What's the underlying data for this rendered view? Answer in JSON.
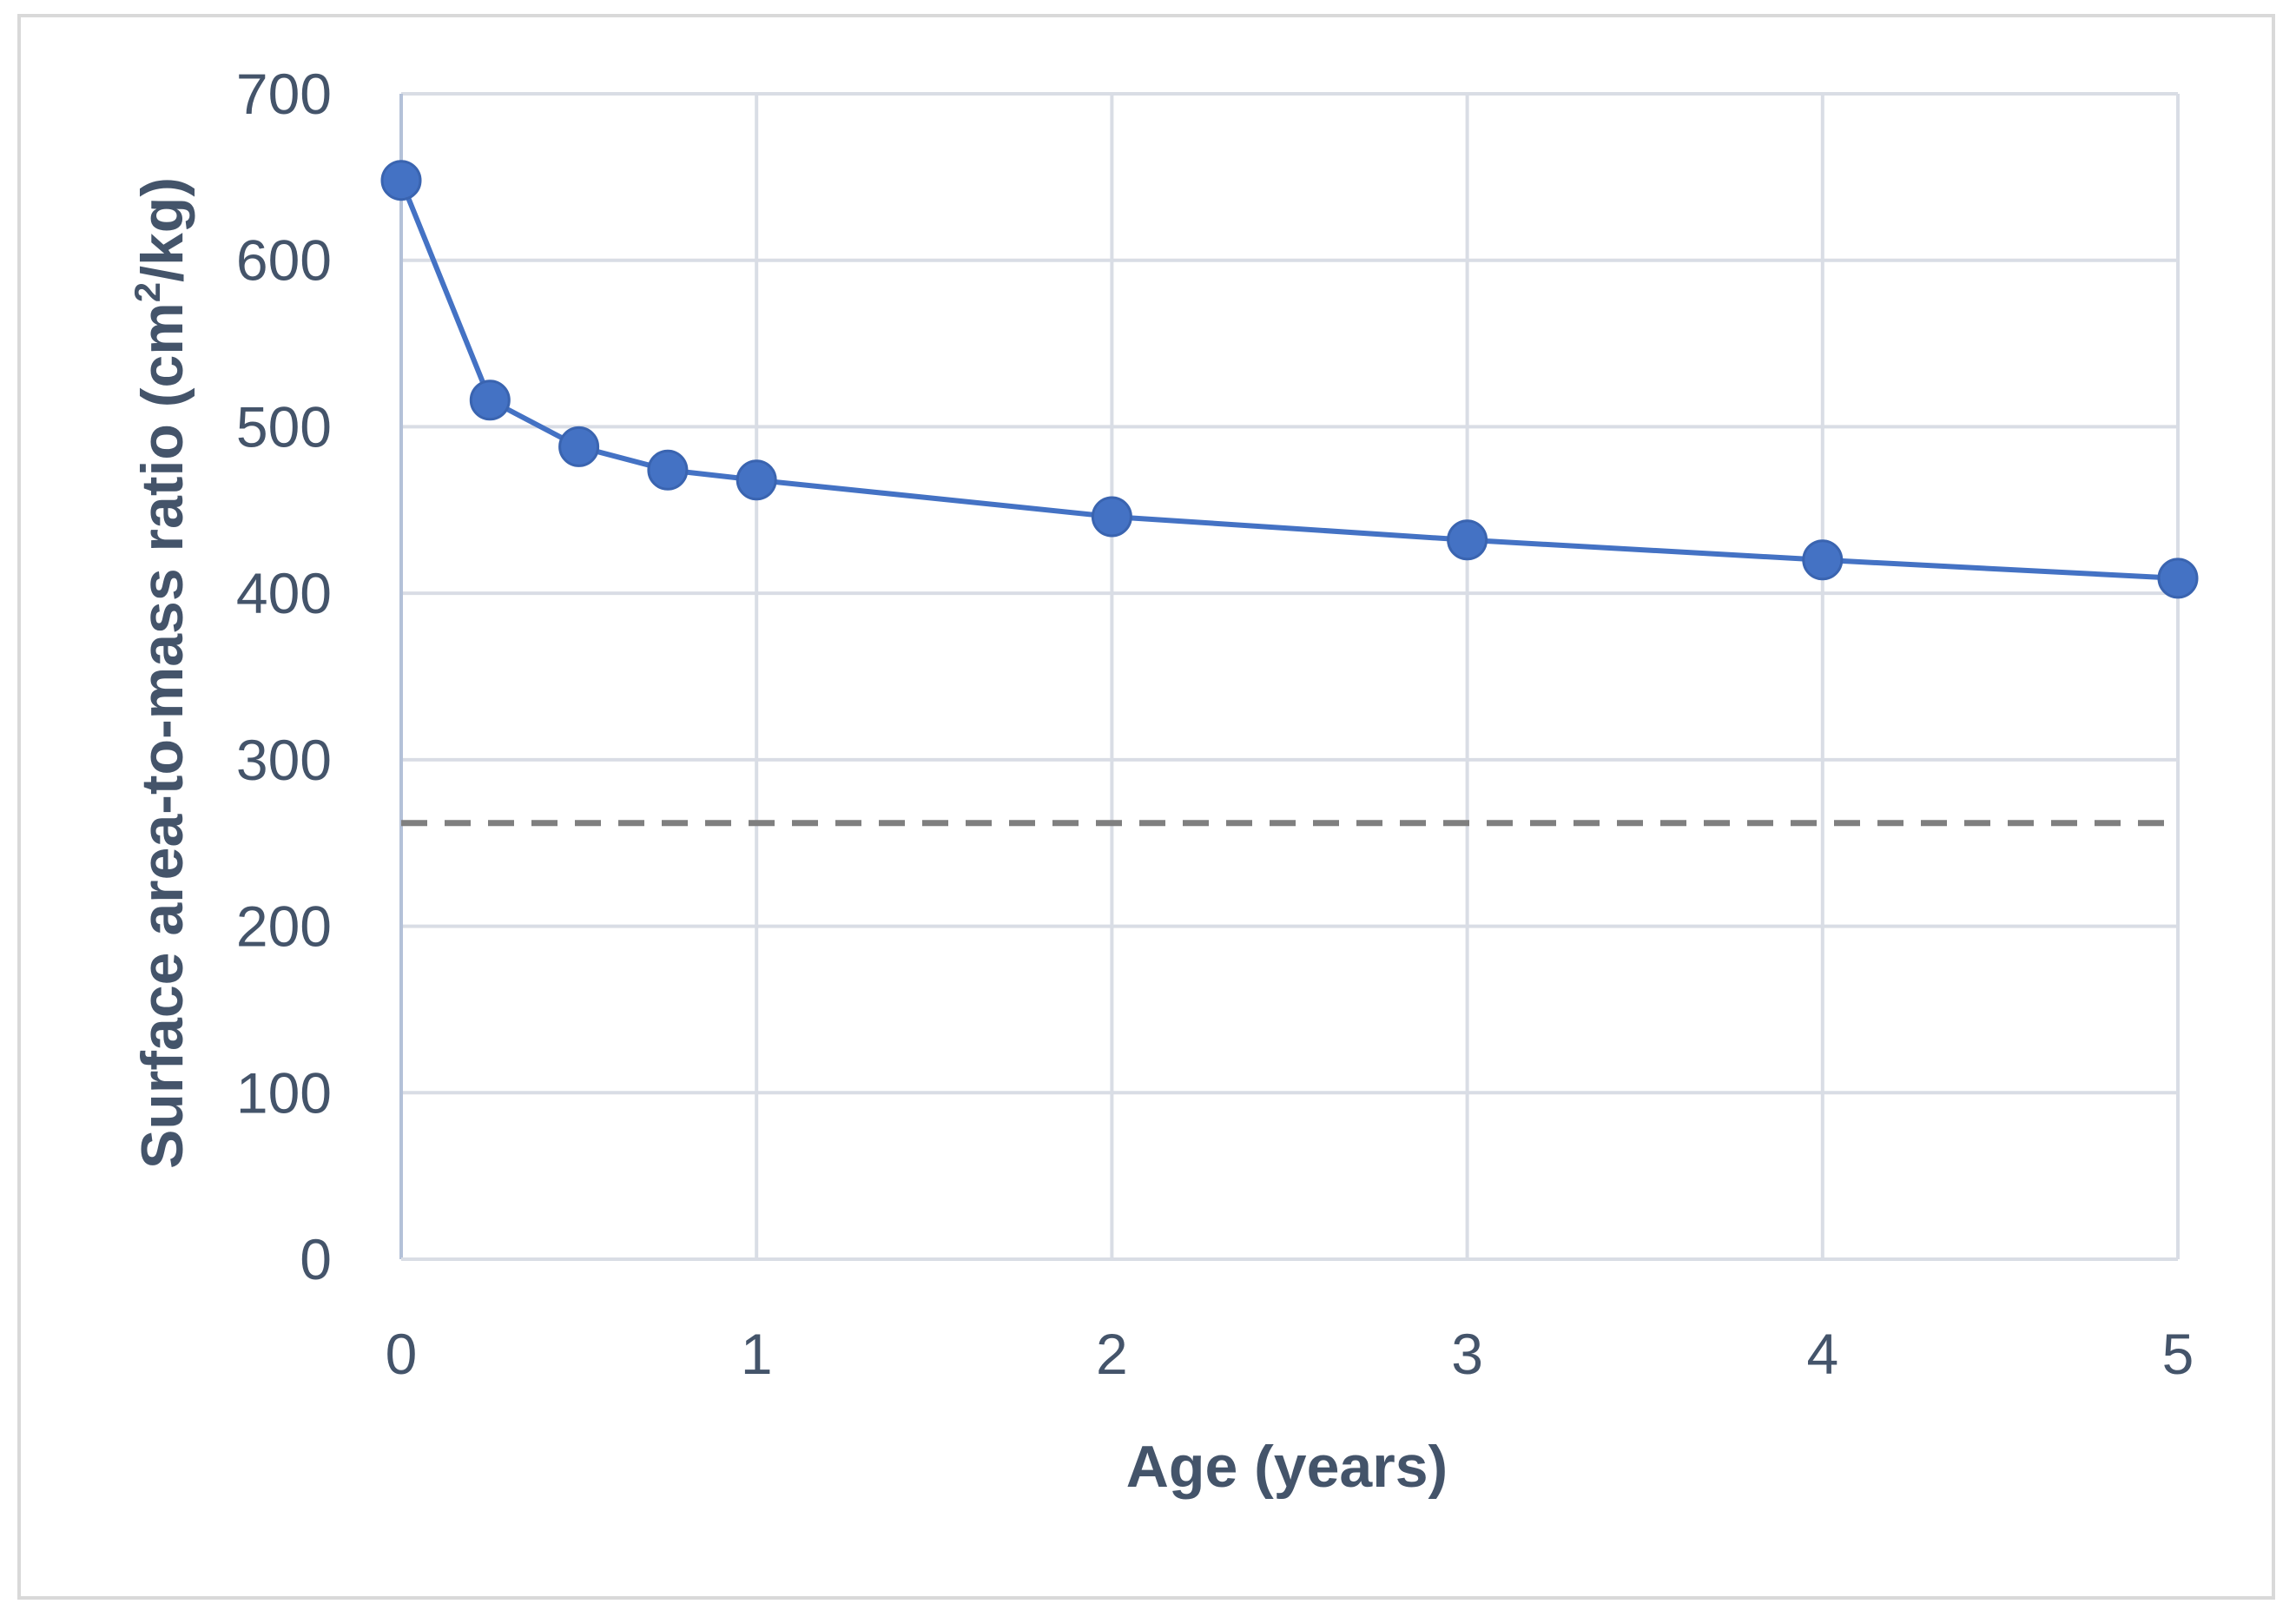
{
  "chart_data": {
    "type": "line",
    "title": "",
    "xlabel": "Age (years)",
    "ylabel": {
      "before": "Surface area-to-mass ratio (cm",
      "superscript": "2",
      "after": "/kg)"
    },
    "xlim": [
      0,
      5
    ],
    "ylim": [
      0,
      700
    ],
    "x_ticks": [
      0,
      1,
      2,
      3,
      4,
      5
    ],
    "y_ticks": [
      0,
      100,
      200,
      300,
      400,
      500,
      600,
      700
    ],
    "grid": true,
    "legend": "none",
    "series": [
      {
        "x": [
          0,
          0.25,
          0.5,
          0.75,
          1,
          2,
          3,
          4,
          5
        ],
        "values": [
          648,
          516,
          488,
          474,
          468,
          446,
          432,
          420,
          409
        ],
        "color": "#4472c4",
        "style": "solid",
        "markers": true
      }
    ],
    "reference_lines": [
      {
        "y": 262,
        "color": "#7f7f7f",
        "style": "dashed"
      }
    ],
    "colors": {
      "grid": "#d9dde5",
      "axis": "#b4c1d8",
      "text": "#44546a"
    }
  }
}
